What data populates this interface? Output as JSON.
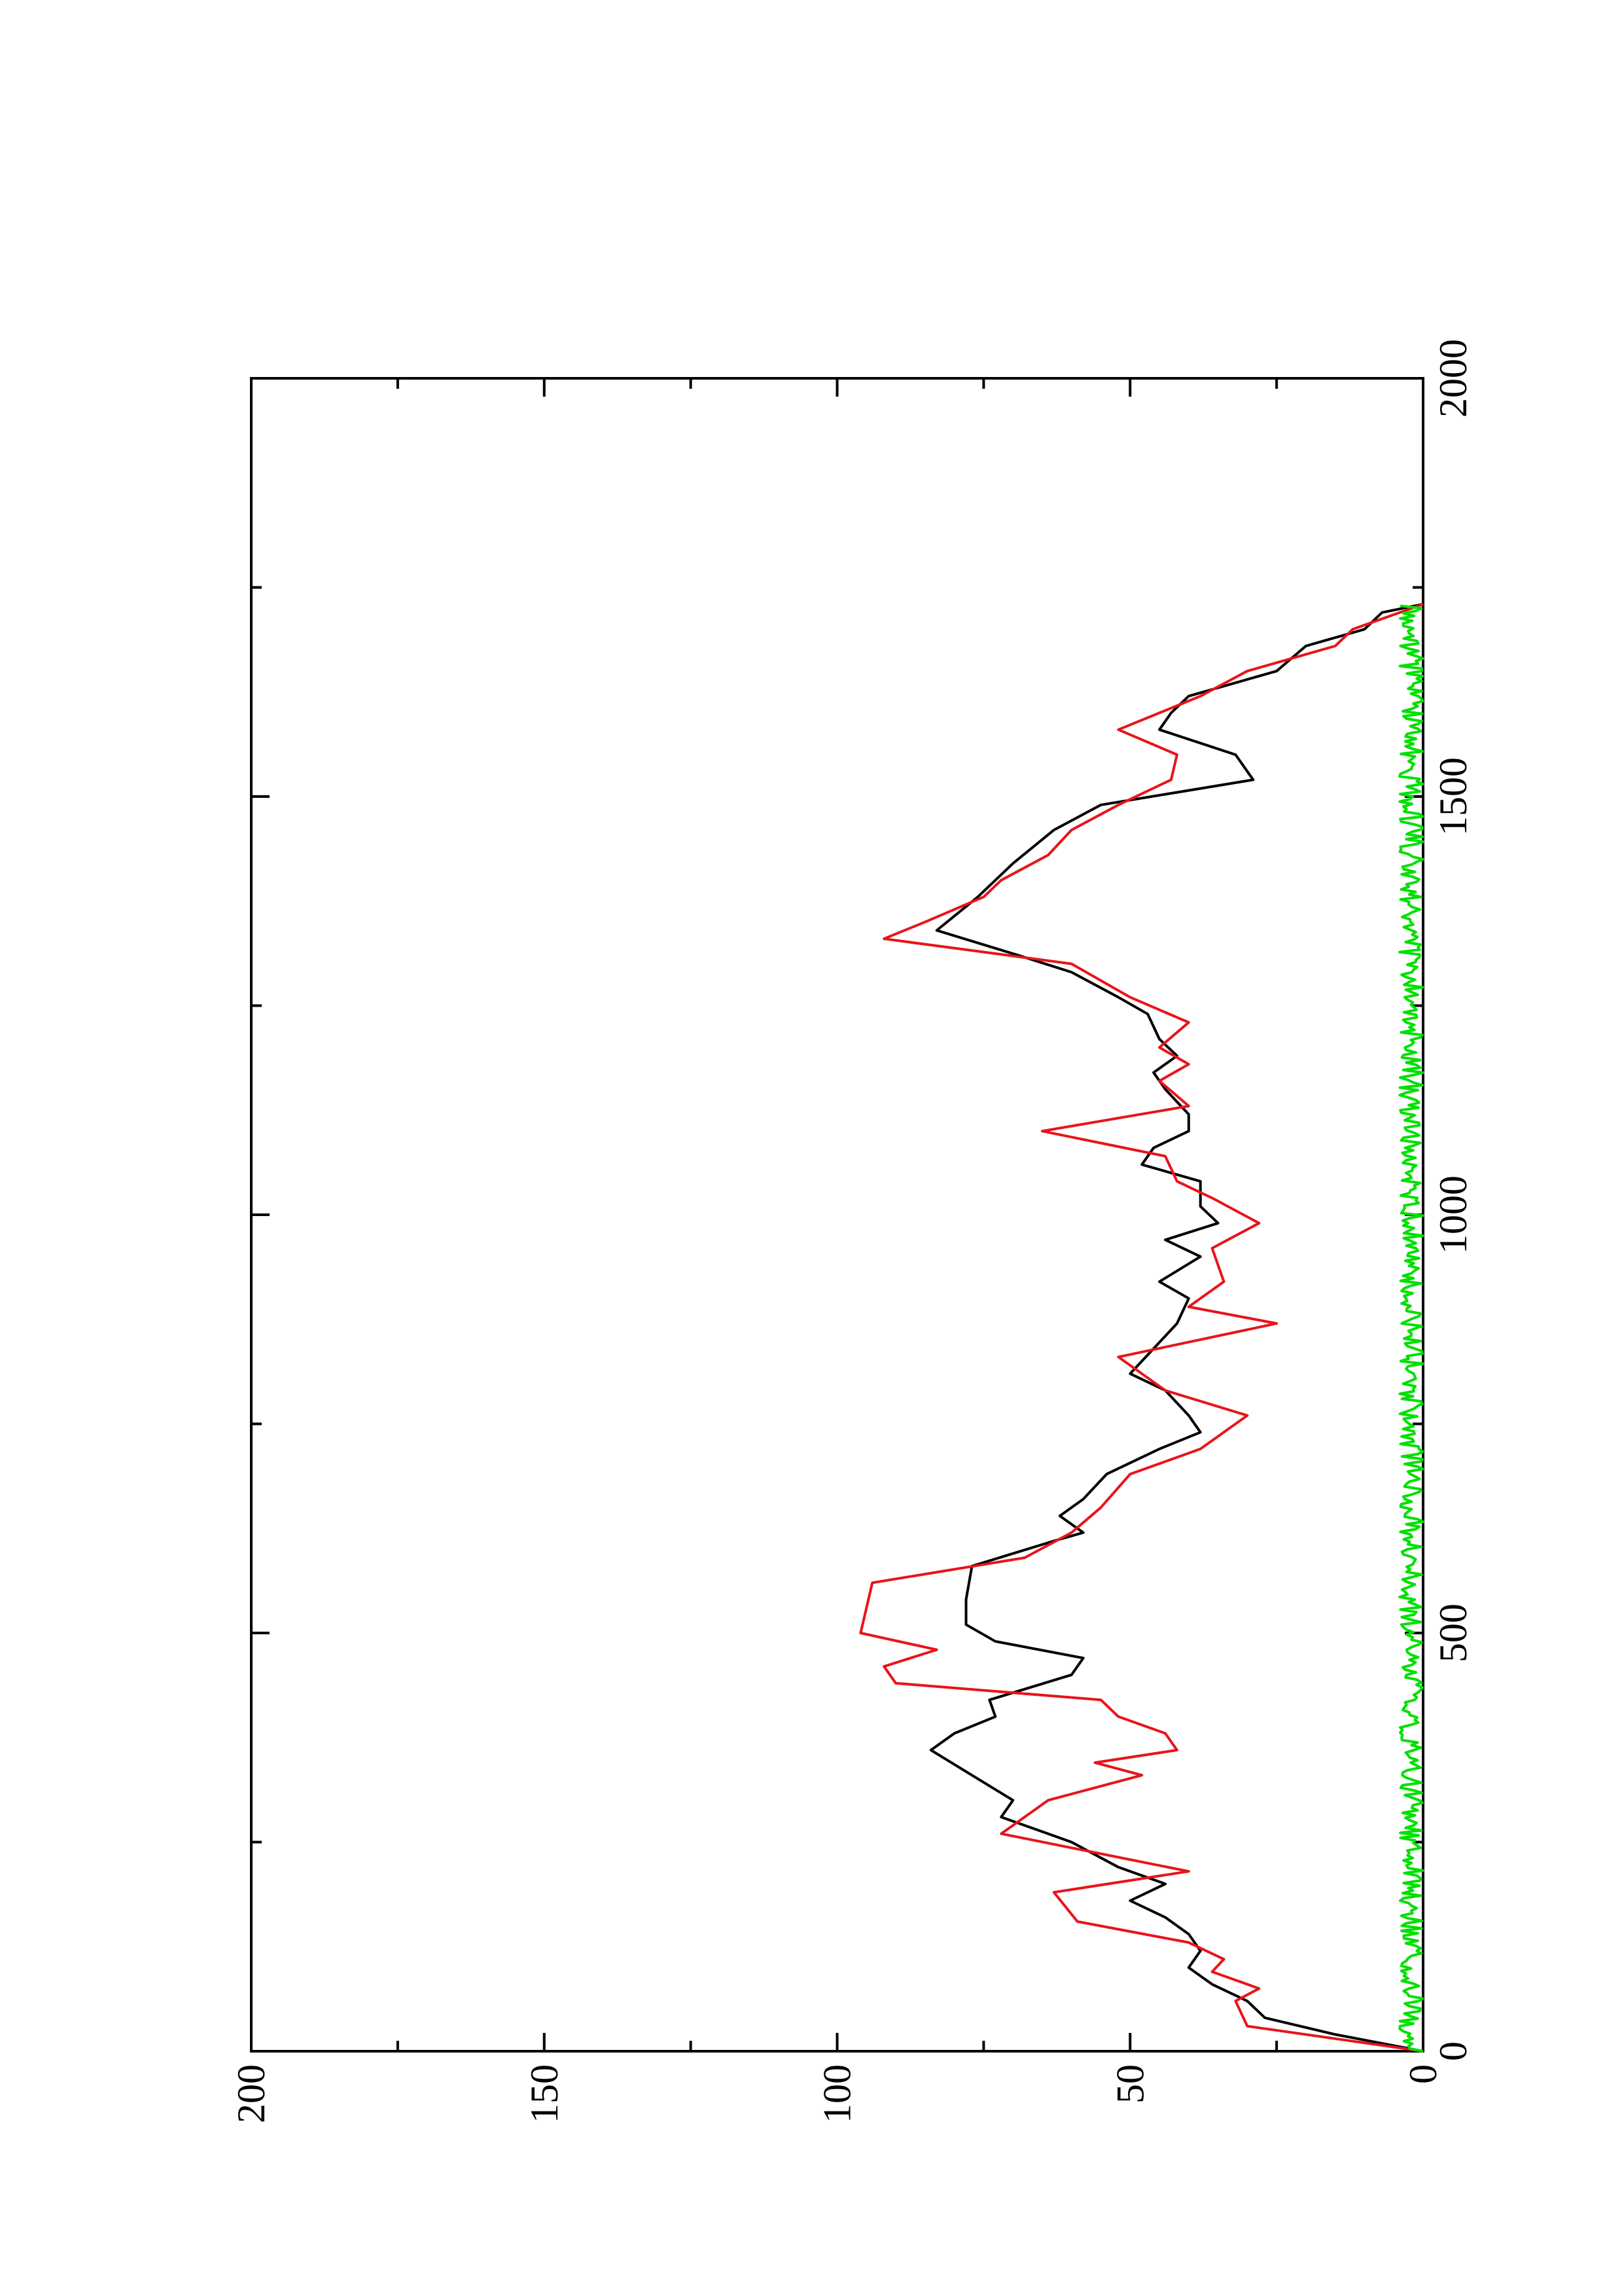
{
  "chart_data": {
    "type": "line",
    "orientation": "rotated-90-ccw",
    "title": "",
    "xlabel": "",
    "ylabel": "",
    "xlim": [
      0,
      2000
    ],
    "ylim": [
      0,
      200
    ],
    "x_ticks": [
      0,
      500,
      1000,
      1500,
      2000
    ],
    "y_ticks": [
      0,
      50,
      100,
      150,
      200
    ],
    "x_minor_ticks": [
      250,
      750,
      1250,
      1750
    ],
    "y_minor_ticks": [
      25,
      75,
      125,
      175
    ],
    "x_tick_labels": [
      "0",
      "500",
      "1000",
      "1500",
      "2000"
    ],
    "y_tick_labels": [
      "0",
      "50",
      "100",
      "150",
      "200"
    ],
    "grid": false,
    "series": [
      {
        "color": "#000000",
        "x": [
          0,
          20,
          40,
          60,
          80,
          100,
          120,
          140,
          160,
          180,
          200,
          220,
          250,
          280,
          300,
          330,
          360,
          380,
          400,
          420,
          450,
          470,
          490,
          510,
          540,
          580,
          610,
          620,
          640,
          660,
          690,
          720,
          740,
          760,
          790,
          810,
          840,
          870,
          900,
          920,
          950,
          970,
          990,
          1010,
          1040,
          1060,
          1080,
          1100,
          1120,
          1150,
          1170,
          1190,
          1210,
          1240,
          1260,
          1290,
          1310,
          1340,
          1380,
          1400,
          1420,
          1460,
          1490,
          1520,
          1550,
          1580,
          1600,
          1620,
          1650,
          1680,
          1700,
          1720,
          1730
        ],
        "y": [
          0,
          15,
          27,
          30,
          36,
          40,
          38,
          40,
          44,
          50,
          44,
          52,
          60,
          72,
          70,
          77,
          84,
          80,
          73,
          74,
          60,
          58,
          73,
          78,
          78,
          77,
          63,
          58,
          62,
          58,
          54,
          45,
          38,
          40,
          44,
          50,
          46,
          42,
          40,
          45,
          38,
          44,
          35,
          38,
          38,
          48,
          46,
          40,
          40,
          44,
          46,
          42,
          45,
          47,
          52,
          60,
          69,
          83,
          76,
          73,
          70,
          63,
          55,
          29,
          32,
          45,
          43,
          40,
          25,
          20,
          10,
          7,
          0
        ]
      },
      {
        "color": "#e8141a",
        "x": [
          0,
          30,
          60,
          75,
          95,
          110,
          130,
          155,
          190,
          215,
          260,
          300,
          330,
          345,
          360,
          380,
          400,
          420,
          440,
          460,
          480,
          500,
          530,
          560,
          590,
          620,
          650,
          690,
          720,
          760,
          790,
          830,
          870,
          890,
          920,
          960,
          990,
          1020,
          1040,
          1070,
          1100,
          1130,
          1160,
          1180,
          1200,
          1230,
          1260,
          1300,
          1330,
          1350,
          1380,
          1400,
          1430,
          1460,
          1490,
          1520,
          1550,
          1580,
          1620,
          1650,
          1680,
          1700,
          1730
        ],
        "y": [
          0,
          30,
          32,
          28,
          36,
          34,
          40,
          59,
          63,
          40,
          72,
          64,
          48,
          56,
          42,
          44,
          52,
          55,
          90,
          92,
          83,
          96,
          95,
          94,
          68,
          60,
          55,
          50,
          38,
          30,
          44,
          52,
          25,
          40,
          34,
          36,
          28,
          36,
          42,
          44,
          65,
          40,
          45,
          40,
          45,
          40,
          50,
          60,
          92,
          85,
          75,
          72,
          64,
          60,
          52,
          43,
          42,
          52,
          38,
          30,
          15,
          12,
          0
        ]
      },
      {
        "color": "#00e000",
        "x": [
          0,
          1730
        ],
        "y": [
          2,
          2
        ],
        "noise_amplitude": 2
      }
    ]
  }
}
